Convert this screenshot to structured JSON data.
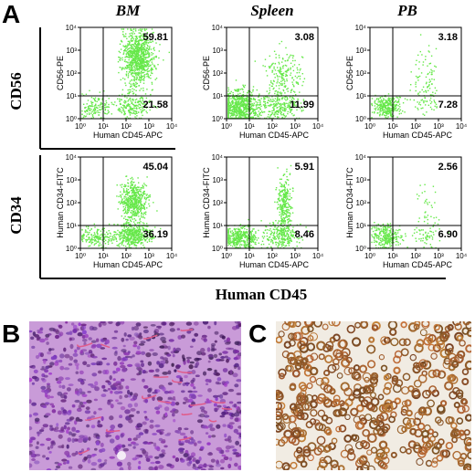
{
  "panels": {
    "A": "A",
    "B": "B",
    "C": "C"
  },
  "columns": [
    "BM",
    "Spleen",
    "PB"
  ],
  "rows": [
    "CD56",
    "CD34"
  ],
  "bottom_axis_title": "Human CD45",
  "colors": {
    "dots": "#66e84a",
    "he_background": "#c79ad6",
    "he_nuclei": "#6b3f9e",
    "ihc_background": "#f3efe8",
    "ihc_stain": "#a0602a"
  },
  "chart_data": [
    {
      "type": "scatter",
      "column": "BM",
      "row": "CD56",
      "xlabel": "Human CD45-APC",
      "ylabel": "CD56-PE",
      "xlim": [
        1,
        10000
      ],
      "ylim": [
        1,
        10000
      ],
      "log_scale": true,
      "tick_labels": [
        "10⁰",
        "10¹",
        "10²",
        "10³",
        "10⁴"
      ],
      "quadrant_upper_right": "59.81",
      "quadrant_lower_right": "21.58"
    },
    {
      "type": "scatter",
      "column": "Spleen",
      "row": "CD56",
      "xlabel": "Human CD45-APC",
      "ylabel": "CD56-PE",
      "xlim": [
        1,
        10000
      ],
      "ylim": [
        1,
        10000
      ],
      "log_scale": true,
      "tick_labels": [
        "10⁰",
        "10¹",
        "10²",
        "10³",
        "10⁴"
      ],
      "quadrant_upper_right": "3.08",
      "quadrant_lower_right": "11.99"
    },
    {
      "type": "scatter",
      "column": "PB",
      "row": "CD56",
      "xlabel": "Human CD45-APC",
      "ylabel": "CD56-PE",
      "xlim": [
        1,
        10000
      ],
      "ylim": [
        1,
        10000
      ],
      "log_scale": true,
      "tick_labels": [
        "10⁰",
        "10¹",
        "10²",
        "10³",
        "10⁴"
      ],
      "quadrant_upper_right": "3.18",
      "quadrant_lower_right": "7.28"
    },
    {
      "type": "scatter",
      "column": "BM",
      "row": "CD34",
      "xlabel": "Human CD45-APC",
      "ylabel": "Human CD34-FITC",
      "xlim": [
        1,
        10000
      ],
      "ylim": [
        1,
        10000
      ],
      "log_scale": true,
      "tick_labels": [
        "10⁰",
        "10¹",
        "10²",
        "10³",
        "10⁴"
      ],
      "quadrant_upper_right": "45.04",
      "quadrant_lower_right": "36.19"
    },
    {
      "type": "scatter",
      "column": "Spleen",
      "row": "CD34",
      "xlabel": "Human CD45-APC",
      "ylabel": "Human CD34-FITC",
      "xlim": [
        1,
        10000
      ],
      "ylim": [
        1,
        10000
      ],
      "log_scale": true,
      "tick_labels": [
        "10⁰",
        "10¹",
        "10²",
        "10³",
        "10⁴"
      ],
      "quadrant_upper_right": "5.91",
      "quadrant_lower_right": "8.46"
    },
    {
      "type": "scatter",
      "column": "PB",
      "row": "CD34",
      "xlabel": "Human CD45-APC",
      "ylabel": "Human CD34-FITC",
      "xlim": [
        1,
        10000
      ],
      "ylim": [
        1,
        10000
      ],
      "log_scale": true,
      "tick_labels": [
        "10⁰",
        "10¹",
        "10²",
        "10³",
        "10⁴"
      ],
      "quadrant_upper_right": "2.56",
      "quadrant_lower_right": "6.90"
    }
  ]
}
